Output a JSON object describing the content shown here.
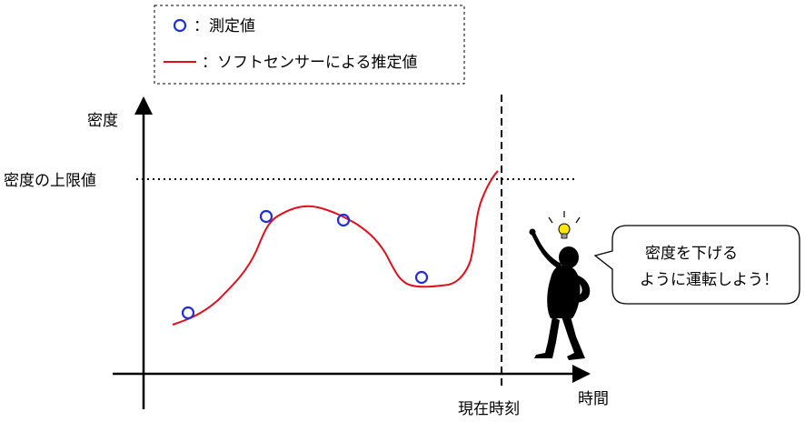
{
  "legend": {
    "measured_label": "：測定値",
    "estimate_label": "：ソフトセンサーによる推定値"
  },
  "axes": {
    "y_label": "密度",
    "x_label": "時間",
    "upper_limit_label": "密度の上限値",
    "current_time_label": "現在時刻"
  },
  "speech_bubble": {
    "line1": "密度を下げる",
    "line2": "ように運転しよう！"
  },
  "colors": {
    "measured": "#1f2fd6",
    "estimate": "#e0101a",
    "axis": "#000000",
    "bulb": "#ffe600"
  },
  "icons": {
    "person": "thinking-person-icon",
    "bulb": "lightbulb-icon"
  }
}
